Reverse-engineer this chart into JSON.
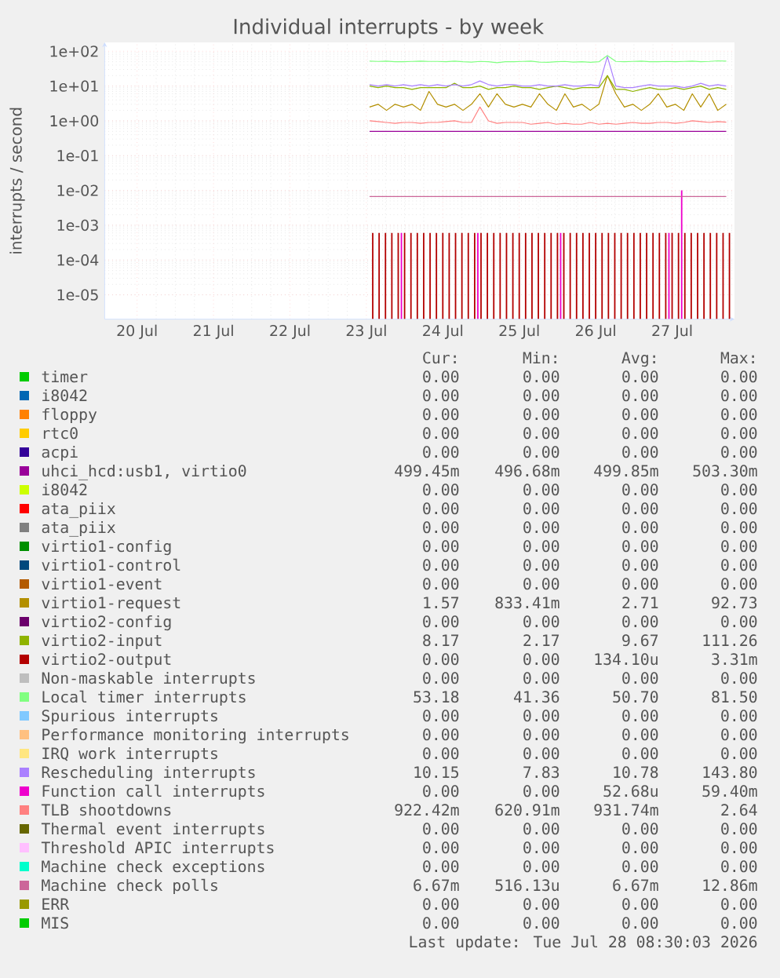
{
  "chart_data": {
    "type": "line",
    "title": "Individual interrupts - by week",
    "ylabel": "interrupts / second",
    "log": true,
    "grid": true,
    "legend": "bottom",
    "xlim": [
      "2026-07-19T13:50",
      "2026-07-27T19:35"
    ],
    "xticks": [
      {
        "value": "2026-07-20",
        "label": "20 Jul"
      },
      {
        "value": "2026-07-21",
        "label": "21 Jul"
      },
      {
        "value": "2026-07-22",
        "label": "22 Jul"
      },
      {
        "value": "2026-07-23",
        "label": "23 Jul"
      },
      {
        "value": "2026-07-24",
        "label": "24 Jul"
      },
      {
        "value": "2026-07-25",
        "label": "25 Jul"
      },
      {
        "value": "2026-07-26",
        "label": "26 Jul"
      },
      {
        "value": "2026-07-27",
        "label": "27 Jul"
      }
    ],
    "ylim": [
      2e-06,
      180
    ],
    "yticks": [
      {
        "value": 1e-05,
        "label": "1e-05"
      },
      {
        "value": 0.0001,
        "label": "1e-04"
      },
      {
        "value": 0.001,
        "label": "1e-03"
      },
      {
        "value": 0.01,
        "label": "1e-02"
      },
      {
        "value": 0.1,
        "label": "1e-01"
      },
      {
        "value": 1,
        "label": "1e+00"
      },
      {
        "value": 10,
        "label": "1e+01"
      },
      {
        "value": 100,
        "label": "1e+02"
      }
    ],
    "x": [
      "2026-07-23T01:00",
      "2026-07-23T03:40",
      "2026-07-23T06:20",
      "2026-07-23T09:00",
      "2026-07-23T11:40",
      "2026-07-23T14:20",
      "2026-07-23T17:00",
      "2026-07-23T19:40",
      "2026-07-23T22:20",
      "2026-07-24T01:00",
      "2026-07-24T03:40",
      "2026-07-24T06:20",
      "2026-07-24T09:00",
      "2026-07-24T11:40",
      "2026-07-24T14:20",
      "2026-07-24T17:00",
      "2026-07-24T19:40",
      "2026-07-24T22:20",
      "2026-07-25T01:00",
      "2026-07-25T03:40",
      "2026-07-25T06:20",
      "2026-07-25T09:00",
      "2026-07-25T11:40",
      "2026-07-25T14:20",
      "2026-07-25T17:00",
      "2026-07-25T19:40",
      "2026-07-25T22:20",
      "2026-07-26T01:00",
      "2026-07-26T03:40",
      "2026-07-26T06:20",
      "2026-07-26T09:00",
      "2026-07-26T11:40",
      "2026-07-26T14:20",
      "2026-07-26T17:00",
      "2026-07-26T19:40",
      "2026-07-26T22:20",
      "2026-07-27T01:00",
      "2026-07-27T03:40",
      "2026-07-27T06:20",
      "2026-07-27T09:00",
      "2026-07-27T11:40",
      "2026-07-27T14:20",
      "2026-07-27T17:00"
    ],
    "series": [
      {
        "name": "timer",
        "color": "#00cc00",
        "values": [
          null,
          null,
          null,
          null,
          null,
          null,
          null,
          null,
          null,
          null,
          null,
          null,
          null,
          null,
          null,
          null,
          null,
          null,
          null,
          null,
          null,
          null,
          null,
          null,
          null,
          null,
          null,
          null,
          null,
          null,
          null,
          null,
          null,
          null,
          null,
          null,
          null,
          null,
          null,
          null,
          null,
          null,
          null
        ]
      },
      {
        "name": "i8042",
        "color": "#0066b3",
        "values": [
          null,
          null,
          null,
          null,
          null,
          null,
          null,
          null,
          null,
          null,
          null,
          null,
          null,
          null,
          null,
          null,
          null,
          null,
          null,
          null,
          null,
          null,
          null,
          null,
          null,
          null,
          null,
          null,
          null,
          null,
          null,
          null,
          null,
          null,
          null,
          null,
          null,
          null,
          null,
          null,
          null,
          null,
          null
        ]
      },
      {
        "name": "floppy",
        "color": "#ff8000",
        "values": [
          null,
          null,
          null,
          null,
          null,
          null,
          null,
          null,
          null,
          null,
          null,
          null,
          null,
          null,
          null,
          null,
          null,
          null,
          null,
          null,
          null,
          null,
          null,
          null,
          null,
          null,
          null,
          null,
          null,
          null,
          null,
          null,
          null,
          null,
          null,
          null,
          null,
          null,
          null,
          null,
          null,
          null,
          null
        ]
      },
      {
        "name": "rtc0",
        "color": "#ffcc00",
        "values": [
          null,
          null,
          null,
          null,
          null,
          null,
          null,
          null,
          null,
          null,
          null,
          null,
          null,
          null,
          null,
          null,
          null,
          null,
          null,
          null,
          null,
          null,
          null,
          null,
          null,
          null,
          null,
          null,
          null,
          null,
          null,
          null,
          null,
          null,
          null,
          null,
          null,
          null,
          null,
          null,
          null,
          null,
          null
        ]
      },
      {
        "name": "acpi",
        "color": "#330099",
        "values": [
          null,
          null,
          null,
          null,
          null,
          null,
          null,
          null,
          null,
          null,
          null,
          null,
          null,
          null,
          null,
          null,
          null,
          null,
          null,
          null,
          null,
          null,
          null,
          null,
          null,
          null,
          null,
          null,
          null,
          null,
          null,
          null,
          null,
          null,
          null,
          null,
          null,
          null,
          null,
          null,
          null,
          null,
          null
        ]
      },
      {
        "name": "uhci_hcd:usb1, virtio0",
        "color": "#990099",
        "values": [
          0.5,
          0.5,
          0.5,
          0.5,
          0.5,
          0.5,
          0.5,
          0.5,
          0.5,
          0.5,
          0.5,
          0.5,
          0.5,
          0.5,
          0.5,
          0.5,
          0.5,
          0.5,
          0.5,
          0.5,
          0.5,
          0.5,
          0.5,
          0.5,
          0.5,
          0.5,
          0.5,
          0.5,
          0.5,
          0.5,
          0.5,
          0.5,
          0.5,
          0.5,
          0.5,
          0.5,
          0.5,
          0.5,
          0.5,
          0.5,
          0.5,
          0.5,
          0.5
        ]
      },
      {
        "name": "i8042",
        "color": "#ccff00",
        "values": [
          null,
          null,
          null,
          null,
          null,
          null,
          null,
          null,
          null,
          null,
          null,
          null,
          null,
          null,
          null,
          null,
          null,
          null,
          null,
          null,
          null,
          null,
          null,
          null,
          null,
          null,
          null,
          null,
          null,
          null,
          null,
          null,
          null,
          null,
          null,
          null,
          null,
          null,
          null,
          null,
          null,
          null,
          null
        ]
      },
      {
        "name": "ata_piix",
        "color": "#ff0000",
        "values": [
          null,
          null,
          null,
          null,
          null,
          null,
          null,
          null,
          null,
          null,
          null,
          null,
          null,
          null,
          null,
          null,
          null,
          null,
          null,
          null,
          null,
          null,
          null,
          null,
          null,
          null,
          null,
          null,
          null,
          null,
          null,
          null,
          null,
          null,
          null,
          null,
          null,
          null,
          null,
          null,
          null,
          null,
          null
        ]
      },
      {
        "name": "ata_piix",
        "color": "#808080",
        "values": [
          null,
          null,
          null,
          null,
          null,
          null,
          null,
          null,
          null,
          null,
          null,
          null,
          null,
          null,
          null,
          null,
          null,
          null,
          null,
          null,
          null,
          null,
          null,
          null,
          null,
          null,
          null,
          null,
          null,
          null,
          null,
          null,
          null,
          null,
          null,
          null,
          null,
          null,
          null,
          null,
          null,
          null,
          null
        ]
      },
      {
        "name": "virtio1-config",
        "color": "#008f00",
        "values": [
          null,
          null,
          null,
          null,
          null,
          null,
          null,
          null,
          null,
          null,
          null,
          null,
          null,
          null,
          null,
          null,
          null,
          null,
          null,
          null,
          null,
          null,
          null,
          null,
          null,
          null,
          null,
          null,
          null,
          null,
          null,
          null,
          null,
          null,
          null,
          null,
          null,
          null,
          null,
          null,
          null,
          null,
          null
        ]
      },
      {
        "name": "virtio1-control",
        "color": "#00487d",
        "values": [
          null,
          null,
          null,
          null,
          null,
          null,
          null,
          null,
          null,
          null,
          null,
          null,
          null,
          null,
          null,
          null,
          null,
          null,
          null,
          null,
          null,
          null,
          null,
          null,
          null,
          null,
          null,
          null,
          null,
          null,
          null,
          null,
          null,
          null,
          null,
          null,
          null,
          null,
          null,
          null,
          null,
          null,
          null
        ]
      },
      {
        "name": "virtio1-event",
        "color": "#b35a00",
        "values": [
          null,
          null,
          null,
          null,
          null,
          null,
          null,
          null,
          null,
          null,
          null,
          null,
          null,
          null,
          null,
          null,
          null,
          null,
          null,
          null,
          null,
          null,
          null,
          null,
          null,
          null,
          null,
          null,
          null,
          null,
          null,
          null,
          null,
          null,
          null,
          null,
          null,
          null,
          null,
          null,
          null,
          null,
          null
        ]
      },
      {
        "name": "virtio1-request",
        "color": "#b38f00",
        "values": [
          2.5,
          3,
          2,
          3,
          2.5,
          3,
          2,
          7,
          3,
          2.5,
          3,
          2,
          3,
          6,
          2.5,
          6,
          3,
          2.5,
          3,
          2.5,
          6,
          3,
          2,
          6,
          2.5,
          3,
          2,
          3,
          20,
          6,
          2.5,
          3,
          2,
          3,
          6,
          2.5,
          3,
          2,
          6,
          2.5,
          6,
          2,
          3
        ]
      },
      {
        "name": "virtio2-config",
        "color": "#6b006b",
        "values": [
          null,
          null,
          null,
          null,
          null,
          null,
          null,
          null,
          null,
          null,
          null,
          null,
          null,
          null,
          null,
          null,
          null,
          null,
          null,
          null,
          null,
          null,
          null,
          null,
          null,
          null,
          null,
          null,
          null,
          null,
          null,
          null,
          null,
          null,
          null,
          null,
          null,
          null,
          null,
          null,
          null,
          null,
          null
        ]
      },
      {
        "name": "virtio2-input",
        "color": "#8fb300",
        "values": [
          10,
          9,
          10,
          9,
          9,
          8,
          9,
          9,
          9,
          9,
          12,
          9,
          9,
          10,
          8,
          9,
          9,
          10,
          9,
          9,
          8,
          9,
          10,
          9,
          8,
          9,
          9,
          9,
          20,
          8,
          8,
          7,
          8,
          9,
          8,
          8,
          9,
          8,
          9,
          10,
          8,
          9,
          8
        ]
      },
      {
        "name": "virtio2-output",
        "color": "#b30000",
        "type": "bar",
        "x": [
          "2026-07-23T02:00",
          "2026-07-23T04:00",
          "2026-07-23T06:00",
          "2026-07-23T08:00",
          "2026-07-23T10:00",
          "2026-07-23T12:00",
          "2026-07-23T14:00",
          "2026-07-23T16:00",
          "2026-07-23T18:00",
          "2026-07-23T20:00",
          "2026-07-23T22:00",
          "2026-07-24T00:00",
          "2026-07-24T02:00",
          "2026-07-24T04:00",
          "2026-07-24T06:00",
          "2026-07-24T08:00",
          "2026-07-24T10:00",
          "2026-07-24T12:00",
          "2026-07-24T14:00",
          "2026-07-24T16:00",
          "2026-07-24T18:00",
          "2026-07-24T20:00",
          "2026-07-24T22:00",
          "2026-07-25T00:00",
          "2026-07-25T02:00",
          "2026-07-25T04:00",
          "2026-07-25T06:00",
          "2026-07-25T08:00",
          "2026-07-25T10:00",
          "2026-07-25T12:00",
          "2026-07-25T14:00",
          "2026-07-25T16:00",
          "2026-07-25T18:00",
          "2026-07-25T20:00",
          "2026-07-25T22:00",
          "2026-07-26T00:00",
          "2026-07-26T02:00",
          "2026-07-26T04:00",
          "2026-07-26T06:00",
          "2026-07-26T08:00",
          "2026-07-26T10:00",
          "2026-07-26T12:00",
          "2026-07-26T14:00",
          "2026-07-26T16:00",
          "2026-07-26T18:00",
          "2026-07-26T20:00",
          "2026-07-26T22:00",
          "2026-07-27T00:00",
          "2026-07-27T02:00",
          "2026-07-27T04:00",
          "2026-07-27T06:00",
          "2026-07-27T08:00",
          "2026-07-27T10:00",
          "2026-07-27T12:00",
          "2026-07-27T14:00",
          "2026-07-27T16:00",
          "2026-07-27T18:00"
        ],
        "values": [
          0.0006,
          0.0006,
          0.0006,
          0.0006,
          0.0006,
          0.0006,
          0.0006,
          0.0006,
          0.0006,
          0.0006,
          0.0006,
          0.0006,
          0.0006,
          0.0006,
          0.0006,
          0.0006,
          0.0006,
          0.0006,
          0.0006,
          0.0006,
          0.0006,
          0.0006,
          0.0006,
          0.0006,
          0.0006,
          0.0006,
          0.0006,
          0.0006,
          0.0006,
          0.0006,
          0.0006,
          0.0006,
          0.0006,
          0.0006,
          0.0006,
          0.0006,
          0.0006,
          0.0006,
          0.0006,
          0.0006,
          0.0006,
          0.0006,
          0.0006,
          0.0006,
          0.0006,
          0.0006,
          0.0006,
          0.0006,
          0.0006,
          0.0006,
          0.0006,
          0.0006,
          0.0006,
          0.0006,
          0.0006,
          0.0006,
          0.0006
        ]
      },
      {
        "name": "Non-maskable interrupts",
        "color": "#bebebe",
        "values": [
          null,
          null,
          null,
          null,
          null,
          null,
          null,
          null,
          null,
          null,
          null,
          null,
          null,
          null,
          null,
          null,
          null,
          null,
          null,
          null,
          null,
          null,
          null,
          null,
          null,
          null,
          null,
          null,
          null,
          null,
          null,
          null,
          null,
          null,
          null,
          null,
          null,
          null,
          null,
          null,
          null,
          null,
          null
        ]
      },
      {
        "name": "Local timer interrupts",
        "color": "#80ff80",
        "values": [
          52,
          51,
          52,
          50,
          50,
          51,
          52,
          51,
          51,
          50,
          52,
          50,
          49,
          51,
          50,
          47,
          50,
          50,
          51,
          52,
          49,
          48,
          50,
          51,
          49,
          50,
          48,
          50,
          75,
          51,
          50,
          51,
          52,
          50,
          50,
          51,
          50,
          51,
          52,
          50,
          51,
          53,
          52
        ]
      },
      {
        "name": "Spurious interrupts",
        "color": "#80c9ff",
        "values": [
          null,
          null,
          null,
          null,
          null,
          null,
          null,
          null,
          null,
          null,
          null,
          null,
          null,
          null,
          null,
          null,
          null,
          null,
          null,
          null,
          null,
          null,
          null,
          null,
          null,
          null,
          null,
          null,
          null,
          null,
          null,
          null,
          null,
          null,
          null,
          null,
          null,
          null,
          null,
          null,
          null,
          null,
          null
        ]
      },
      {
        "name": "Performance monitoring interrupts",
        "color": "#ffc080",
        "values": [
          null,
          null,
          null,
          null,
          null,
          null,
          null,
          null,
          null,
          null,
          null,
          null,
          null,
          null,
          null,
          null,
          null,
          null,
          null,
          null,
          null,
          null,
          null,
          null,
          null,
          null,
          null,
          null,
          null,
          null,
          null,
          null,
          null,
          null,
          null,
          null,
          null,
          null,
          null,
          null,
          null,
          null,
          null
        ]
      },
      {
        "name": "IRQ work interrupts",
        "color": "#ffe680",
        "values": [
          null,
          null,
          null,
          null,
          null,
          null,
          null,
          null,
          null,
          null,
          null,
          null,
          null,
          null,
          null,
          null,
          null,
          null,
          null,
          null,
          null,
          null,
          null,
          null,
          null,
          null,
          null,
          null,
          null,
          null,
          null,
          null,
          null,
          null,
          null,
          null,
          null,
          null,
          null,
          null,
          null,
          null,
          null
        ]
      },
      {
        "name": "Rescheduling interrupts",
        "color": "#aa80ff",
        "values": [
          11,
          10,
          11,
          10,
          11,
          10,
          11,
          10,
          11,
          10,
          11,
          10,
          11,
          14,
          11,
          10,
          11,
          11,
          10,
          10,
          11,
          10,
          10,
          11,
          10,
          10,
          11,
          10,
          70,
          10,
          9,
          9,
          10,
          11,
          10,
          10,
          10,
          9,
          10,
          12,
          10,
          11,
          10
        ]
      },
      {
        "name": "Function call interrupts",
        "color": "#ee00cc",
        "type": "bar",
        "x": [
          "2026-07-23T11:00",
          "2026-07-24T11:00",
          "2026-07-25T13:00",
          "2026-07-26T23:00",
          "2026-07-27T03:00"
        ],
        "values": [
          0.0006,
          0.0006,
          0.0006,
          0.0006,
          0.01
        ]
      },
      {
        "name": "TLB shootdowns",
        "color": "#ff8080",
        "values": [
          1,
          0.95,
          0.9,
          0.85,
          0.9,
          0.9,
          0.85,
          0.9,
          0.9,
          0.95,
          1,
          0.9,
          0.9,
          2.5,
          1,
          0.85,
          0.9,
          0.9,
          0.9,
          0.8,
          0.85,
          0.9,
          0.8,
          0.85,
          0.8,
          0.8,
          0.9,
          0.8,
          0.85,
          0.8,
          0.85,
          0.9,
          0.85,
          0.85,
          0.9,
          0.9,
          0.85,
          0.9,
          1,
          0.95,
          0.9,
          0.95,
          0.92
        ]
      },
      {
        "name": "Thermal event interrupts",
        "color": "#666600",
        "values": [
          null,
          null,
          null,
          null,
          null,
          null,
          null,
          null,
          null,
          null,
          null,
          null,
          null,
          null,
          null,
          null,
          null,
          null,
          null,
          null,
          null,
          null,
          null,
          null,
          null,
          null,
          null,
          null,
          null,
          null,
          null,
          null,
          null,
          null,
          null,
          null,
          null,
          null,
          null,
          null,
          null,
          null,
          null
        ]
      },
      {
        "name": "Threshold APIC interrupts",
        "color": "#ffbfff",
        "values": [
          null,
          null,
          null,
          null,
          null,
          null,
          null,
          null,
          null,
          null,
          null,
          null,
          null,
          null,
          null,
          null,
          null,
          null,
          null,
          null,
          null,
          null,
          null,
          null,
          null,
          null,
          null,
          null,
          null,
          null,
          null,
          null,
          null,
          null,
          null,
          null,
          null,
          null,
          null,
          null,
          null,
          null,
          null
        ]
      },
      {
        "name": "Machine check exceptions",
        "color": "#00ffcc",
        "values": [
          null,
          null,
          null,
          null,
          null,
          null,
          null,
          null,
          null,
          null,
          null,
          null,
          null,
          null,
          null,
          null,
          null,
          null,
          null,
          null,
          null,
          null,
          null,
          null,
          null,
          null,
          null,
          null,
          null,
          null,
          null,
          null,
          null,
          null,
          null,
          null,
          null,
          null,
          null,
          null,
          null,
          null,
          null
        ]
      },
      {
        "name": "Machine check polls",
        "color": "#cc6699",
        "values": [
          0.0067,
          0.0067,
          0.0067,
          0.0067,
          0.0067,
          0.0067,
          0.0067,
          0.0067,
          0.0067,
          0.0067,
          0.0067,
          0.0067,
          0.0067,
          0.0067,
          0.0067,
          0.0067,
          0.0067,
          0.0067,
          0.0067,
          0.0067,
          0.0067,
          0.0067,
          0.0067,
          0.0067,
          0.0067,
          0.0067,
          0.0067,
          0.0067,
          0.0067,
          0.0067,
          0.0067,
          0.0067,
          0.0067,
          0.0067,
          0.0067,
          0.0067,
          0.0067,
          0.0067,
          0.0067,
          0.0067,
          0.0067,
          0.0067,
          0.0067
        ]
      },
      {
        "name": "ERR",
        "color": "#999900",
        "values": [
          null,
          null,
          null,
          null,
          null,
          null,
          null,
          null,
          null,
          null,
          null,
          null,
          null,
          null,
          null,
          null,
          null,
          null,
          null,
          null,
          null,
          null,
          null,
          null,
          null,
          null,
          null,
          null,
          null,
          null,
          null,
          null,
          null,
          null,
          null,
          null,
          null,
          null,
          null,
          null,
          null,
          null,
          null
        ]
      },
      {
        "name": "MIS",
        "color": "#00cc00",
        "values": [
          null,
          null,
          null,
          null,
          null,
          null,
          null,
          null,
          null,
          null,
          null,
          null,
          null,
          null,
          null,
          null,
          null,
          null,
          null,
          null,
          null,
          null,
          null,
          null,
          null,
          null,
          null,
          null,
          null,
          null,
          null,
          null,
          null,
          null,
          null,
          null,
          null,
          null,
          null,
          null,
          null,
          null,
          null
        ]
      }
    ],
    "annotations": [
      "Cur:",
      "Min:",
      "Avg:",
      "Max:",
      "0.00",
      "0.00",
      "0.00",
      "0.00",
      "0.00",
      "0.00",
      "0.00",
      "0.00",
      "0.00",
      "0.00",
      "0.00",
      "0.00",
      "0.00",
      "0.00",
      "0.00",
      "0.00",
      "0.00",
      "0.00",
      "0.00",
      "0.00",
      "499.45m",
      "496.68m",
      "499.85m",
      "503.30m",
      "0.00",
      "0.00",
      "0.00",
      "0.00",
      "0.00",
      "0.00",
      "0.00",
      "0.00",
      "0.00",
      "0.00",
      "0.00",
      "0.00",
      "0.00",
      "0.00",
      "0.00",
      "0.00",
      "0.00",
      "0.00",
      "0.00",
      "0.00",
      "0.00",
      "0.00",
      "0.00",
      "0.00",
      "1.57",
      "833.41m",
      "2.71",
      "92.73",
      "0.00",
      "0.00",
      "0.00",
      "0.00",
      "8.17",
      "2.17",
      "9.67",
      "111.26",
      "0.00",
      "0.00",
      "134.10u",
      "3.31m",
      "0.00",
      "0.00",
      "0.00",
      "0.00",
      "53.18",
      "41.36",
      "50.70",
      "81.50",
      "0.00",
      "0.00",
      "0.00",
      "0.00",
      "0.00",
      "0.00",
      "0.00",
      "0.00",
      "0.00",
      "0.00",
      "0.00",
      "0.00",
      "10.15",
      "7.83",
      "10.78",
      "143.80",
      "0.00",
      "0.00",
      "52.68u",
      "59.40m",
      "922.42m",
      "620.91m",
      "931.74m",
      "2.64",
      "0.00",
      "0.00",
      "0.00",
      "0.00",
      "0.00",
      "0.00",
      "0.00",
      "0.00",
      "0.00",
      "0.00",
      "0.00",
      "0.00",
      "6.67m",
      "516.13u",
      "6.67m",
      "12.86m",
      "0.00",
      "0.00",
      "0.00",
      "0.00",
      "0.00",
      "0.00",
      "0.00",
      "0.00",
      "Last update: Tue Jul 28 08:30:03 2026"
    ]
  }
}
